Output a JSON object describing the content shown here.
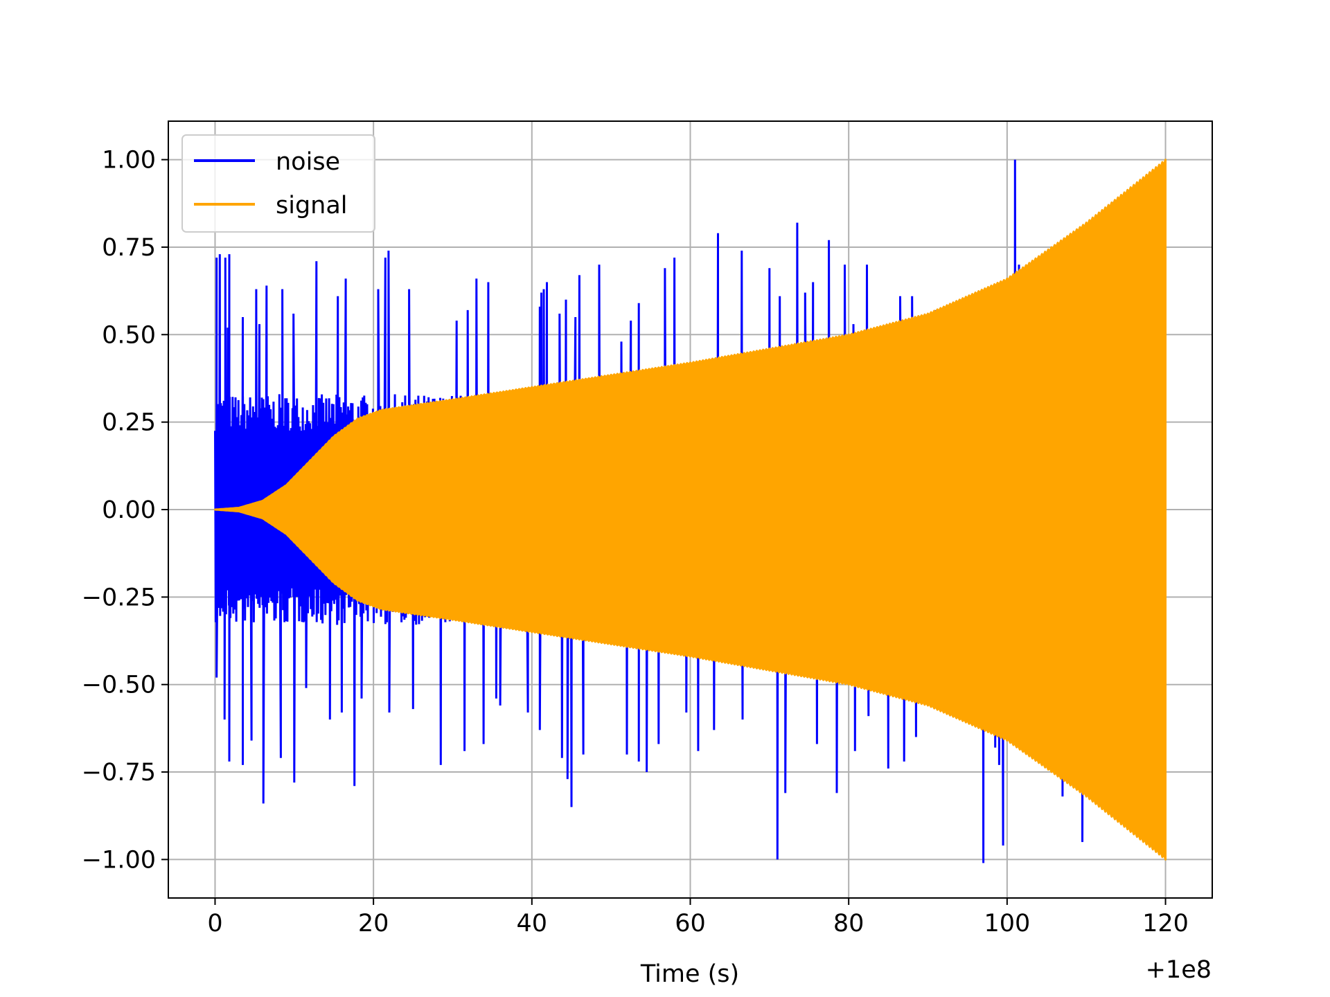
{
  "chart_data": {
    "type": "line",
    "title": "",
    "xlabel": "Time (s)",
    "ylabel": "",
    "x_offset_label": "+1e8",
    "xlim": [
      -5.9,
      125.9
    ],
    "ylim": [
      -1.11,
      1.11
    ],
    "xticks": [
      0,
      20,
      40,
      60,
      80,
      100,
      120
    ],
    "xtick_labels": [
      "0",
      "20",
      "40",
      "60",
      "80",
      "100",
      "120"
    ],
    "yticks": [
      1.0,
      0.75,
      0.5,
      0.25,
      0.0,
      -0.25,
      -0.5,
      -0.75,
      -1.0
    ],
    "ytick_labels": [
      "1.00",
      "0.75",
      "0.50",
      "0.25",
      "0.00",
      "−0.25",
      "−0.50",
      "−0.75",
      "−1.00"
    ],
    "grid": true,
    "legend_position": "upper-left",
    "series": [
      {
        "name": "noise",
        "color": "#0000ff",
        "base_envelope": {
          "t": [
            0,
            120
          ],
          "amplitude": [
            0.3,
            0.3
          ]
        },
        "spikes": [
          [
            0.2,
            0.72
          ],
          [
            0.6,
            0.73
          ],
          [
            1.3,
            0.72
          ],
          [
            1.6,
            0.52
          ],
          [
            1.8,
            0.73
          ],
          [
            3.5,
            0.55
          ],
          [
            5.2,
            0.63
          ],
          [
            5.6,
            0.53
          ],
          [
            6.5,
            0.64
          ],
          [
            8.5,
            0.63
          ],
          [
            9.9,
            0.56
          ],
          [
            12.8,
            0.71
          ],
          [
            15.5,
            0.61
          ],
          [
            16.5,
            0.66
          ],
          [
            20.6,
            0.63
          ],
          [
            21.5,
            0.72
          ],
          [
            21.9,
            0.74
          ],
          [
            24.5,
            0.63
          ],
          [
            30.5,
            0.54
          ],
          [
            31.9,
            0.57
          ],
          [
            33.0,
            0.66
          ],
          [
            34.5,
            0.65
          ],
          [
            41.0,
            0.58
          ],
          [
            41.5,
            0.63
          ],
          [
            41.9,
            0.65
          ],
          [
            41.2,
            0.62
          ],
          [
            43.5,
            0.56
          ],
          [
            44.3,
            0.6
          ],
          [
            45.5,
            0.55
          ],
          [
            46.0,
            0.67
          ],
          [
            48.5,
            0.7
          ],
          [
            51.3,
            0.48
          ],
          [
            52.5,
            0.54
          ],
          [
            53.5,
            0.59
          ],
          [
            56.8,
            0.69
          ],
          [
            58.0,
            0.72
          ],
          [
            63.5,
            0.79
          ],
          [
            66.5,
            0.74
          ],
          [
            70.0,
            0.69
          ],
          [
            71.3,
            0.61
          ],
          [
            73.5,
            0.82
          ],
          [
            74.5,
            0.62
          ],
          [
            75.5,
            0.65
          ],
          [
            77.5,
            0.77
          ],
          [
            79.5,
            0.7
          ],
          [
            80.6,
            0.53
          ],
          [
            82.3,
            0.7
          ],
          [
            86.5,
            0.61
          ],
          [
            88.0,
            0.61
          ],
          [
            91.0,
            0.57
          ],
          [
            93.5,
            0.55
          ],
          [
            94.6,
            0.6
          ],
          [
            96.0,
            0.56
          ],
          [
            101.0,
            1.0
          ],
          [
            101.5,
            0.7
          ],
          [
            104.5,
            0.62
          ],
          [
            113.5,
            0.88
          ],
          [
            0.2,
            -0.48
          ],
          [
            1.2,
            -0.6
          ],
          [
            1.8,
            -0.72
          ],
          [
            3.5,
            -0.73
          ],
          [
            4.6,
            -0.66
          ],
          [
            6.1,
            -0.84
          ],
          [
            8.3,
            -0.71
          ],
          [
            10.0,
            -0.78
          ],
          [
            11.5,
            -0.51
          ],
          [
            14.5,
            -0.6
          ],
          [
            16.0,
            -0.58
          ],
          [
            17.6,
            -0.79
          ],
          [
            18.5,
            -0.54
          ],
          [
            22.0,
            -0.58
          ],
          [
            25.0,
            -0.57
          ],
          [
            28.5,
            -0.73
          ],
          [
            31.5,
            -0.69
          ],
          [
            33.9,
            -0.67
          ],
          [
            35.5,
            -0.54
          ],
          [
            36.0,
            -0.56
          ],
          [
            39.5,
            -0.58
          ],
          [
            41.0,
            -0.63
          ],
          [
            43.8,
            -0.71
          ],
          [
            44.5,
            -0.77
          ],
          [
            45.0,
            -0.85
          ],
          [
            46.5,
            -0.7
          ],
          [
            52.0,
            -0.7
          ],
          [
            53.5,
            -0.72
          ],
          [
            54.5,
            -0.75
          ],
          [
            56.0,
            -0.67
          ],
          [
            59.5,
            -0.58
          ],
          [
            61.0,
            -0.69
          ],
          [
            63.0,
            -0.63
          ],
          [
            66.6,
            -0.6
          ],
          [
            71.0,
            -1.0
          ],
          [
            72.0,
            -0.81
          ],
          [
            76.0,
            -0.67
          ],
          [
            78.5,
            -0.81
          ],
          [
            80.8,
            -0.69
          ],
          [
            82.5,
            -0.59
          ],
          [
            85.0,
            -0.74
          ],
          [
            87.0,
            -0.72
          ],
          [
            88.5,
            -0.65
          ],
          [
            90.5,
            -0.54
          ],
          [
            97.0,
            -1.01
          ],
          [
            98.5,
            -0.68
          ],
          [
            99.0,
            -0.73
          ],
          [
            99.5,
            -0.96
          ],
          [
            107.0,
            -0.82
          ],
          [
            109.5,
            -0.95
          ],
          [
            112.5,
            -0.86
          ]
        ]
      },
      {
        "name": "signal",
        "color": "#ffa500",
        "envelope": {
          "t": [
            0,
            3,
            6,
            9,
            12,
            15,
            18,
            21,
            24,
            27,
            30,
            40,
            50,
            60,
            70,
            80,
            90,
            100,
            110,
            120
          ],
          "amplitude": [
            0.0,
            0.005,
            0.025,
            0.07,
            0.14,
            0.21,
            0.26,
            0.285,
            0.295,
            0.305,
            0.315,
            0.35,
            0.385,
            0.42,
            0.46,
            0.5,
            0.56,
            0.66,
            0.82,
            1.0
          ]
        }
      }
    ]
  }
}
